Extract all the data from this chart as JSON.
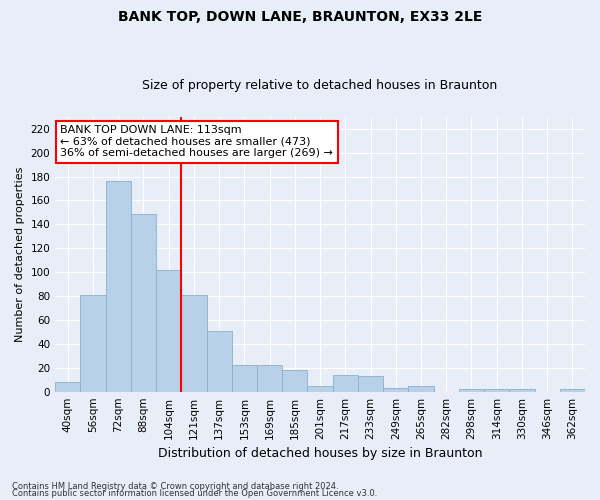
{
  "title": "BANK TOP, DOWN LANE, BRAUNTON, EX33 2LE",
  "subtitle": "Size of property relative to detached houses in Braunton",
  "xlabel": "Distribution of detached houses by size in Braunton",
  "ylabel": "Number of detached properties",
  "categories": [
    "40sqm",
    "56sqm",
    "72sqm",
    "88sqm",
    "104sqm",
    "121sqm",
    "137sqm",
    "153sqm",
    "169sqm",
    "185sqm",
    "201sqm",
    "217sqm",
    "233sqm",
    "249sqm",
    "265sqm",
    "282sqm",
    "298sqm",
    "314sqm",
    "330sqm",
    "346sqm",
    "362sqm"
  ],
  "values": [
    8,
    81,
    176,
    149,
    102,
    81,
    51,
    22,
    22,
    18,
    5,
    14,
    13,
    3,
    5,
    0,
    2,
    2,
    2,
    0,
    2
  ],
  "bar_color": "#b8d0e8",
  "bar_edge_color": "#8ab0cc",
  "vline_x": 4.5,
  "vline_color": "red",
  "annotation_text": "BANK TOP DOWN LANE: 113sqm\n← 63% of detached houses are smaller (473)\n36% of semi-detached houses are larger (269) →",
  "annotation_box_color": "white",
  "annotation_box_edge_color": "red",
  "ylim": [
    0,
    230
  ],
  "yticks": [
    0,
    20,
    40,
    60,
    80,
    100,
    120,
    140,
    160,
    180,
    200,
    220
  ],
  "footnote1": "Contains HM Land Registry data © Crown copyright and database right 2024.",
  "footnote2": "Contains public sector information licensed under the Open Government Licence v3.0.",
  "background_color": "#e8eef8",
  "grid_color": "#ffffff",
  "title_fontsize": 10,
  "subtitle_fontsize": 9,
  "tick_fontsize": 7.5,
  "ylabel_fontsize": 8,
  "xlabel_fontsize": 9
}
